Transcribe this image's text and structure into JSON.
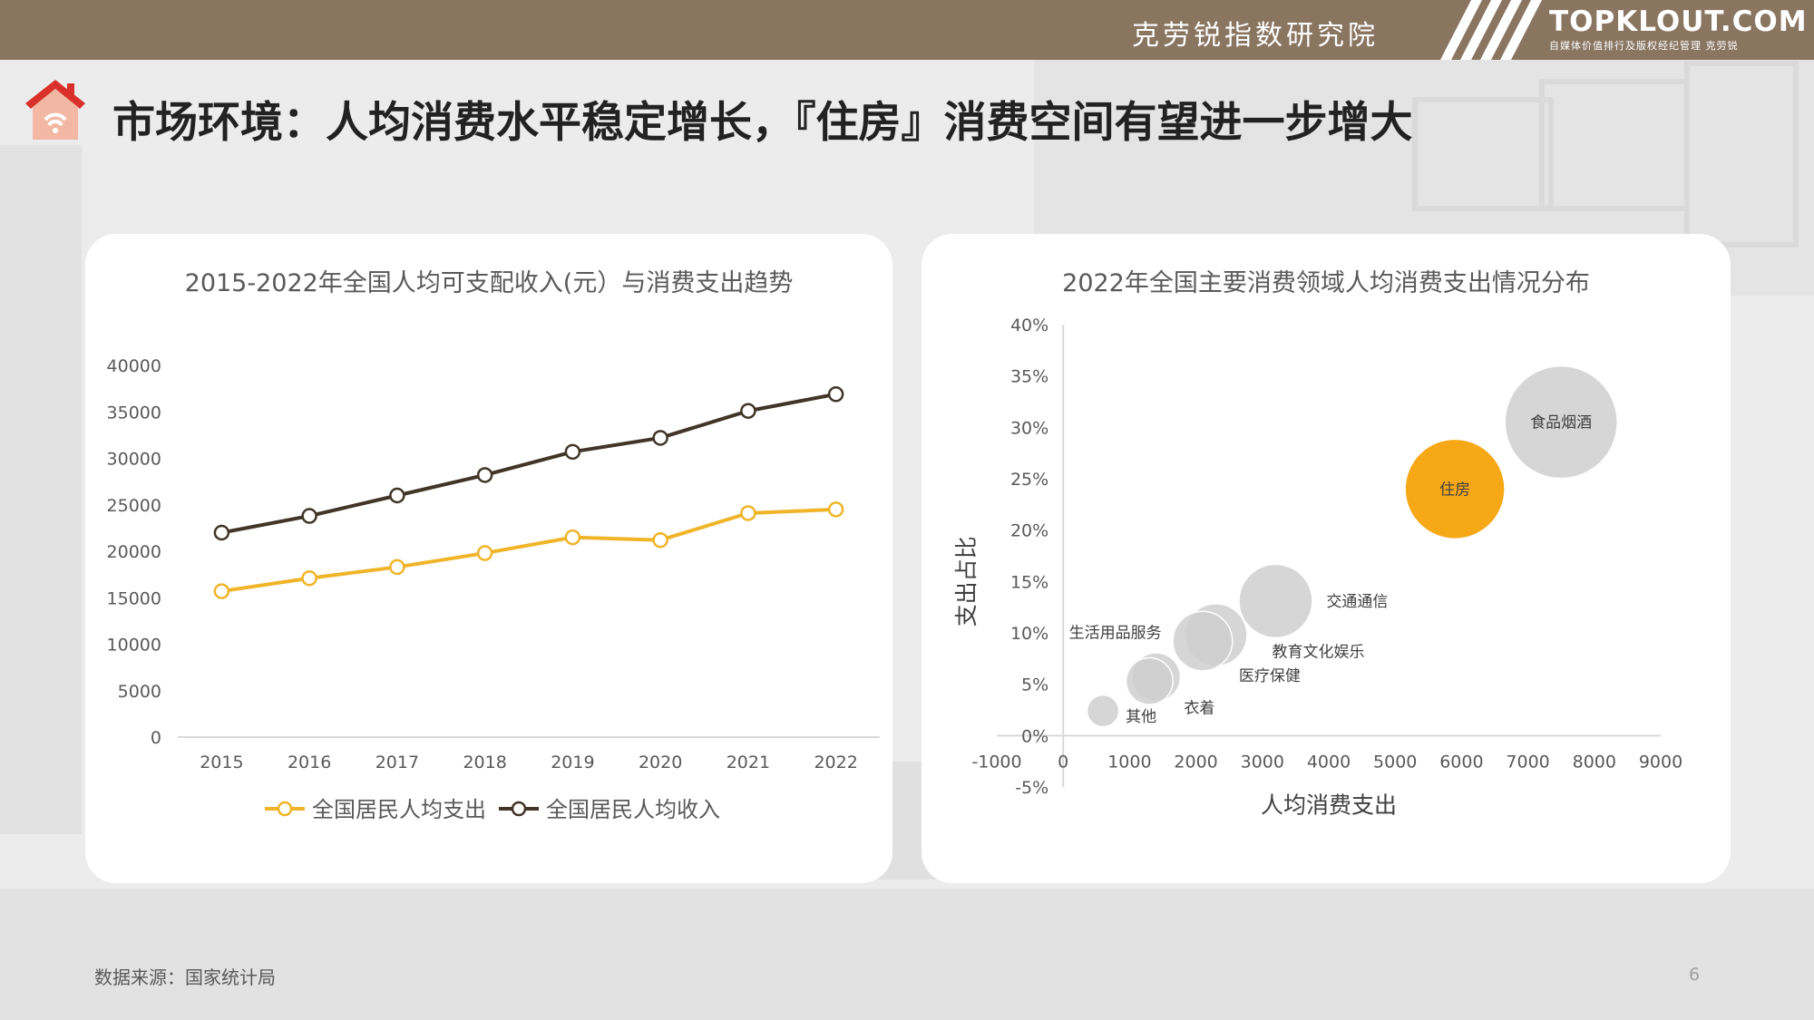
{
  "header": {
    "org_name": "克劳锐指数研究院",
    "brand": "TOPKLOUT.COM",
    "brand_sub": "自媒体价值排行及版权经纪管理 克劳锐"
  },
  "page": {
    "title": "市场环境：人均消费水平稳定增长，『住房』消费空间有望进一步增大",
    "source": "数据来源：国家统计局",
    "page_number": "6"
  },
  "colors": {
    "header_bg": "#8a7560",
    "expense_line": "#f0b428",
    "income_line": "#403527",
    "housing_bubble": "#f7a817",
    "other_bubble": "#cfcfcf"
  },
  "chart_data": [
    {
      "type": "line",
      "title": "2015-2022年全国人均可支配收入(元）与消费支出趋势",
      "categories": [
        "2015",
        "2016",
        "2017",
        "2018",
        "2019",
        "2020",
        "2021",
        "2022"
      ],
      "series": [
        {
          "name": "全国居民人均支出",
          "values": [
            15700,
            17100,
            18300,
            19800,
            21500,
            21200,
            24100,
            24500
          ]
        },
        {
          "name": "全国居民人均收入",
          "values": [
            22000,
            23800,
            26000,
            28200,
            30700,
            32200,
            35100,
            36900
          ]
        }
      ],
      "yticks": [
        "0",
        "5000",
        "10000",
        "15000",
        "20000",
        "25000",
        "30000",
        "35000",
        "40000"
      ],
      "ylim": [
        0,
        40000
      ],
      "legend_position": "bottom",
      "grid": false
    },
    {
      "type": "scatter",
      "subtype": "bubble",
      "title": "2022年全国主要消费领域人均消费支出情况分布",
      "xlabel": "人均消费支出",
      "ylabel": "支出占比",
      "xlim": [
        -1000,
        9000
      ],
      "ylim": [
        -5,
        40
      ],
      "xticks": [
        "-1000",
        "0",
        "1000",
        "2000",
        "3000",
        "4000",
        "5000",
        "6000",
        "7000",
        "8000",
        "9000"
      ],
      "yticks": [
        "-5%",
        "0%",
        "5%",
        "10%",
        "15%",
        "20%",
        "25%",
        "30%",
        "35%",
        "40%"
      ],
      "points": [
        {
          "name": "食品烟酒",
          "x": 7500,
          "y": 30.5,
          "size": 7500
        },
        {
          "name": "住房",
          "x": 5900,
          "y": 24.0,
          "size": 5900
        },
        {
          "name": "交通通信",
          "x": 3200,
          "y": 13.1,
          "size": 3200
        },
        {
          "name": "教育文化娱乐",
          "x": 2300,
          "y": 9.8,
          "size": 2300
        },
        {
          "name": "医疗保健",
          "x": 2100,
          "y": 9.2,
          "size": 2100
        },
        {
          "name": "生活用品服务",
          "x": 1400,
          "y": 5.7,
          "size": 1400
        },
        {
          "name": "衣着",
          "x": 1300,
          "y": 5.3,
          "size": 1300
        },
        {
          "name": "其他",
          "x": 600,
          "y": 2.4,
          "size": 600
        }
      ]
    }
  ]
}
